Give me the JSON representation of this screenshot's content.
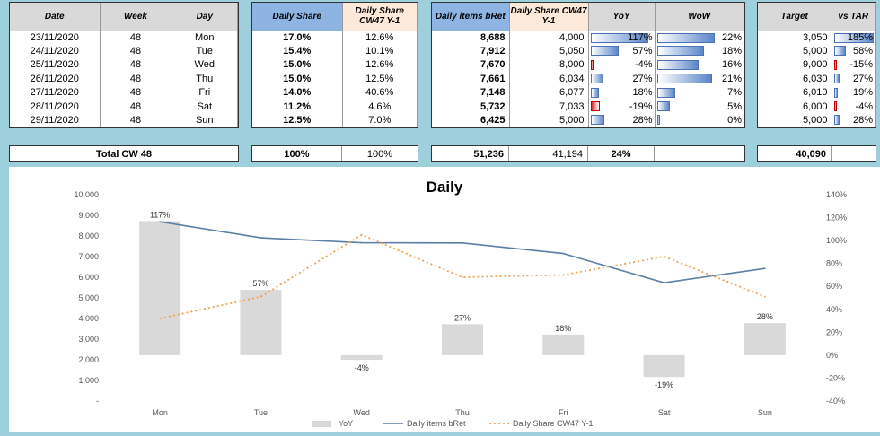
{
  "table1": {
    "headers": [
      "Date",
      "Week",
      "Day"
    ],
    "rows": [
      [
        "23/11/2020",
        "48",
        "Mon"
      ],
      [
        "24/11/2020",
        "48",
        "Tue"
      ],
      [
        "25/11/2020",
        "48",
        "Wed"
      ],
      [
        "26/11/2020",
        "48",
        "Thu"
      ],
      [
        "27/11/2020",
        "48",
        "Fri"
      ],
      [
        "28/11/2020",
        "48",
        "Sat"
      ],
      [
        "29/11/2020",
        "48",
        "Sun"
      ]
    ],
    "total_label": "Total CW 48"
  },
  "table2": {
    "headers": [
      "Daily Share",
      "Daily Share CW47  Y-1"
    ],
    "header_colors": [
      "#8db4e2",
      "#fde9d9"
    ],
    "rows": [
      [
        "17.0%",
        "12.6%"
      ],
      [
        "15.4%",
        "10.1%"
      ],
      [
        "15.0%",
        "12.6%"
      ],
      [
        "15.0%",
        "12.5%"
      ],
      [
        "14.0%",
        "40.6%"
      ],
      [
        "11.2%",
        "4.6%"
      ],
      [
        "12.5%",
        "7.0%"
      ]
    ],
    "totals": [
      "100%",
      "100%"
    ]
  },
  "table3": {
    "headers": [
      "Daily items bRet",
      "Daily Share CW47  Y-1",
      "YoY",
      "WoW"
    ],
    "header_colors": [
      "#8db4e2",
      "#fde9d9",
      "#d9d9d9",
      "#d9d9d9"
    ],
    "rows": [
      [
        "8,688",
        "4,000",
        "117%",
        "22%"
      ],
      [
        "7,912",
        "5,050",
        "57%",
        "18%"
      ],
      [
        "7,670",
        "8,000",
        "-4%",
        "16%"
      ],
      [
        "7,661",
        "6,034",
        "27%",
        "21%"
      ],
      [
        "7,148",
        "6,077",
        "18%",
        "7%"
      ],
      [
        "5,732",
        "7,033",
        "-19%",
        "5%"
      ],
      [
        "6,425",
        "5,000",
        "28%",
        "0%"
      ]
    ],
    "yoy_values": [
      117,
      57,
      -4,
      27,
      18,
      -19,
      28
    ],
    "wow_values": [
      22,
      18,
      16,
      21,
      7,
      5,
      0
    ],
    "totals": [
      "51,236",
      "41,194",
      "24%",
      ""
    ]
  },
  "table4": {
    "headers": [
      "Target",
      "vs TAR"
    ],
    "rows": [
      [
        "3,050",
        "185%"
      ],
      [
        "5,000",
        "58%"
      ],
      [
        "9,000",
        "-15%"
      ],
      [
        "6,030",
        "27%"
      ],
      [
        "6,010",
        "19%"
      ],
      [
        "6,000",
        "-4%"
      ],
      [
        "5,000",
        "28%"
      ]
    ],
    "vs_values": [
      185,
      58,
      -15,
      27,
      19,
      -4,
      28
    ],
    "totals": [
      "40,090",
      ""
    ]
  },
  "chart_data": {
    "type": "bar",
    "title": "Daily",
    "categories": [
      "Mon",
      "Tue",
      "Wed",
      "Thu",
      "Fri",
      "Sat",
      "Sun"
    ],
    "series": [
      {
        "name": "YoY",
        "type": "bar",
        "axis": "right",
        "values": [
          117,
          57,
          -4,
          27,
          18,
          -19,
          28
        ],
        "labels": [
          "117%",
          "57%",
          "-4%",
          "27%",
          "18%",
          "-19%",
          "28%"
        ],
        "color": "#d9d9d9"
      },
      {
        "name": "Daily items bRet",
        "type": "line",
        "axis": "left",
        "values": [
          8688,
          7912,
          7670,
          7661,
          7148,
          5732,
          6425
        ],
        "color": "#5b7fa6"
      },
      {
        "name": "Daily Share CW47  Y-1",
        "type": "line-dotted",
        "axis": "right",
        "values": [
          32,
          51,
          105,
          68,
          70,
          86,
          51
        ],
        "color": "#f0a050"
      }
    ],
    "y_left": {
      "min": 0,
      "max": 10000,
      "step": 1000,
      "ticks": [
        "-",
        "1,000",
        "2,000",
        "3,000",
        "4,000",
        "5,000",
        "6,000",
        "7,000",
        "8,000",
        "9,000",
        "10,000"
      ]
    },
    "y_right": {
      "min": -40,
      "max": 140,
      "step": 20,
      "ticks": [
        "-40%",
        "-20%",
        "0%",
        "20%",
        "40%",
        "60%",
        "80%",
        "100%",
        "120%",
        "140%"
      ]
    },
    "legend_placement": "bottom",
    "grid": false
  }
}
